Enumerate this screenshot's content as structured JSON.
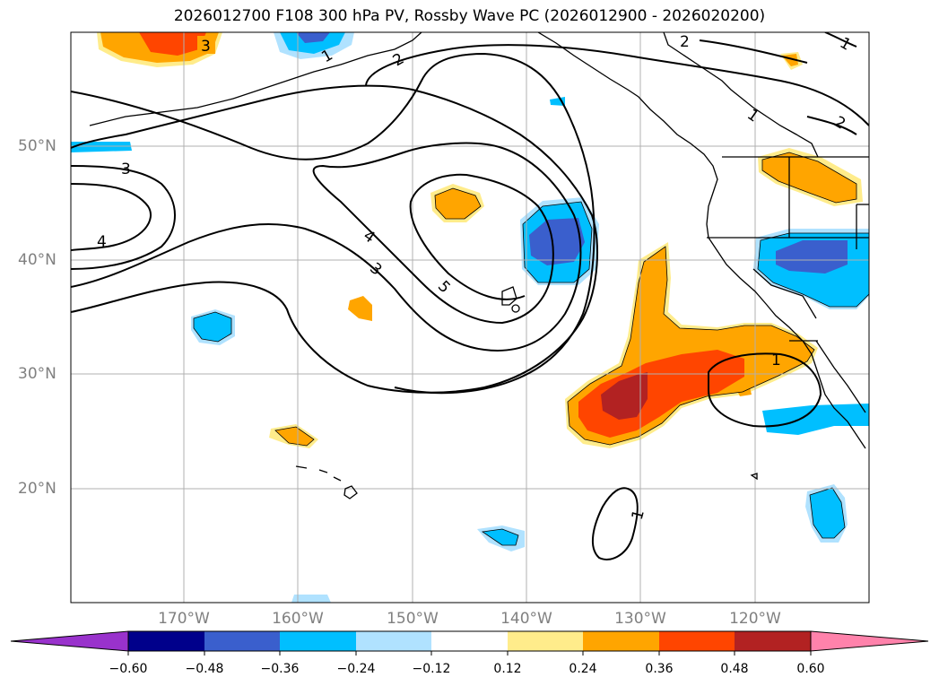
{
  "title": "2026012700 F108 300 hPa PV, Rossby Wave PC (2026012900 - 2026020200)",
  "map": {
    "latitude_labels": [
      "50°N",
      "40°N",
      "30°N",
      "20°N"
    ],
    "longitude_labels": [
      "170°W",
      "160°W",
      "150°W",
      "140°W",
      "130°W",
      "120°W"
    ],
    "contour_labels": [
      "3",
      "2",
      "1",
      "2",
      "3",
      "4",
      "4",
      "3",
      "5",
      "1",
      "1",
      "2"
    ]
  },
  "colorbar": {
    "tick_labels": [
      "−0.60",
      "−0.48",
      "−0.36",
      "−0.24",
      "−0.12",
      "0.12",
      "0.24",
      "0.36",
      "0.48",
      "0.60"
    ],
    "colors": [
      "#9932cc",
      "#00008b",
      "#3a5fcd",
      "#00bfff",
      "#b0e2ff",
      "#ffffff",
      "#ffec8b",
      "#ffa500",
      "#ff4500",
      "#b22222",
      "#ff82ab"
    ]
  }
}
